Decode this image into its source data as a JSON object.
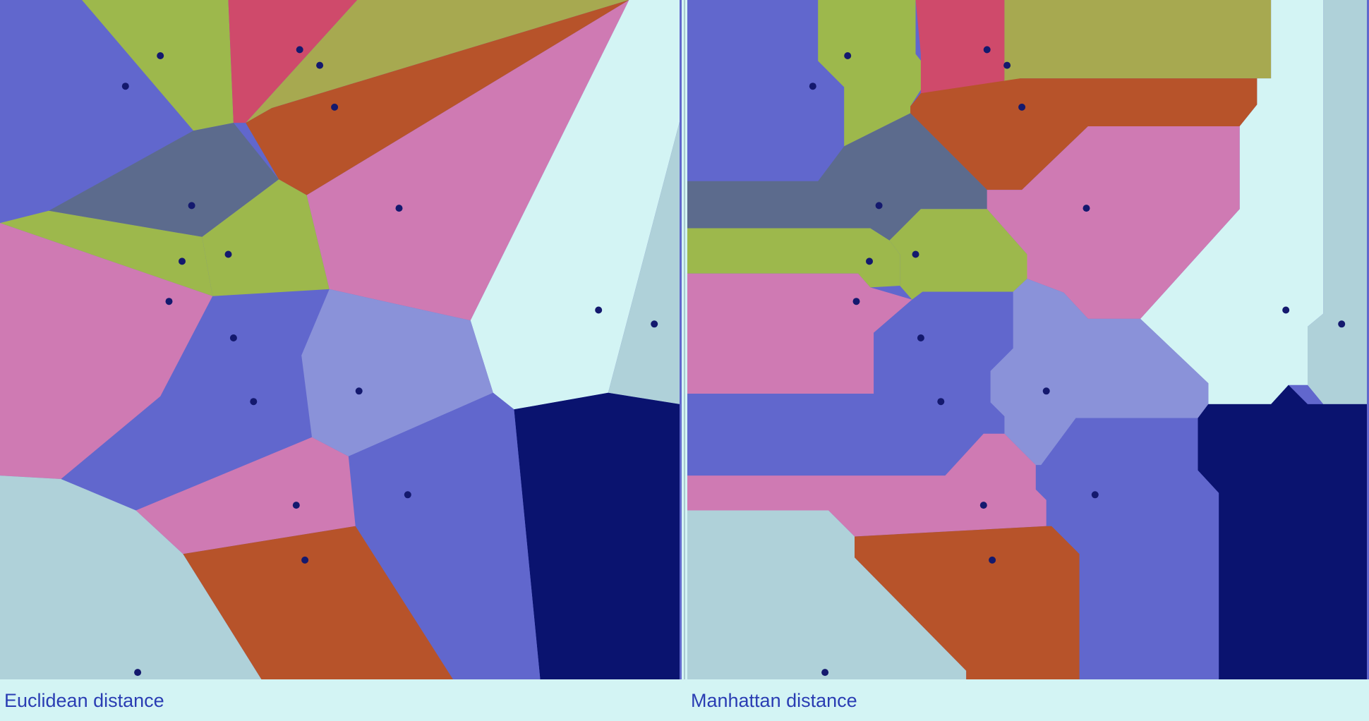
{
  "palette": {
    "blue": "#6167cd",
    "olive": "#9db84c",
    "crimson": "#cf4a6b",
    "khaki": "#a7a950",
    "rust": "#b7532a",
    "pink": "#cf7ab3",
    "light_cyan": "#d3f4f4",
    "powder": "#afd1d9",
    "slate": "#5c6b8d",
    "periwinkle": "#8a92d9",
    "navy": "#0a136f",
    "seed": "#14196e"
  },
  "panels": [
    {
      "id": "euclidean",
      "caption": "Euclidean distance"
    },
    {
      "id": "manhattan",
      "caption": "Manhattan distance"
    }
  ]
}
